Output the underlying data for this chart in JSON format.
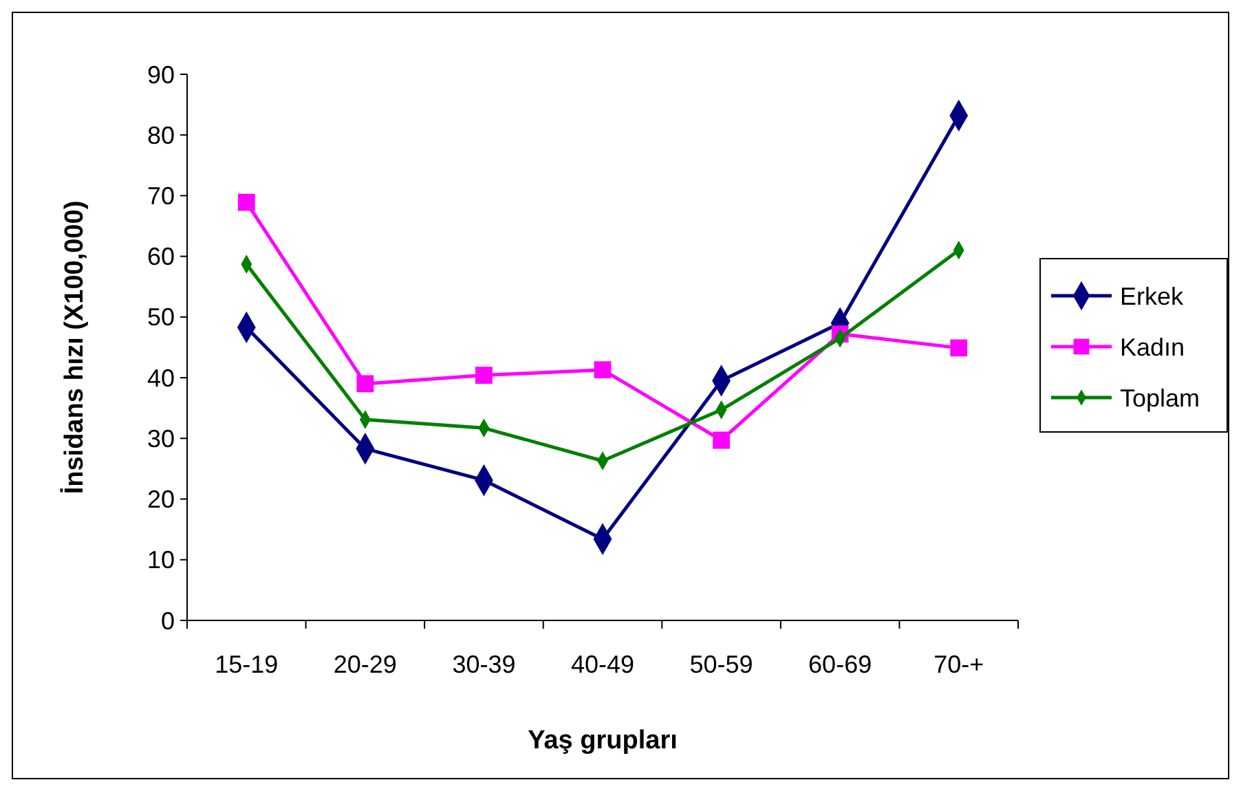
{
  "chart_data": {
    "type": "line",
    "xlabel": "Yaş grupları",
    "ylabel": "İnsidans hızı (X100,000)",
    "categories": [
      "15-19",
      "20-29",
      "30-39",
      "40-49",
      "50-59",
      "60-69",
      "70-+"
    ],
    "series": [
      {
        "name": "Erkek",
        "color": "#000080",
        "marker": "diamond",
        "values": [
          48.3,
          28.3,
          23.1,
          13.4,
          39.5,
          49,
          83.2
        ]
      },
      {
        "name": "Kadın",
        "color": "#ff00ff",
        "marker": "square",
        "values": [
          68.9,
          39,
          40.4,
          41.3,
          29.7,
          47.2,
          44.9
        ]
      },
      {
        "name": "Toplam",
        "color": "#008000",
        "marker": "diamond",
        "values": [
          58.7,
          33.1,
          31.7,
          26.3,
          34.7,
          46.5,
          61
        ]
      }
    ],
    "ylim": [
      0,
      90
    ],
    "yticks": [
      0,
      10,
      20,
      30,
      40,
      50,
      60,
      70,
      80,
      90
    ],
    "grid": false,
    "legend": "right"
  }
}
